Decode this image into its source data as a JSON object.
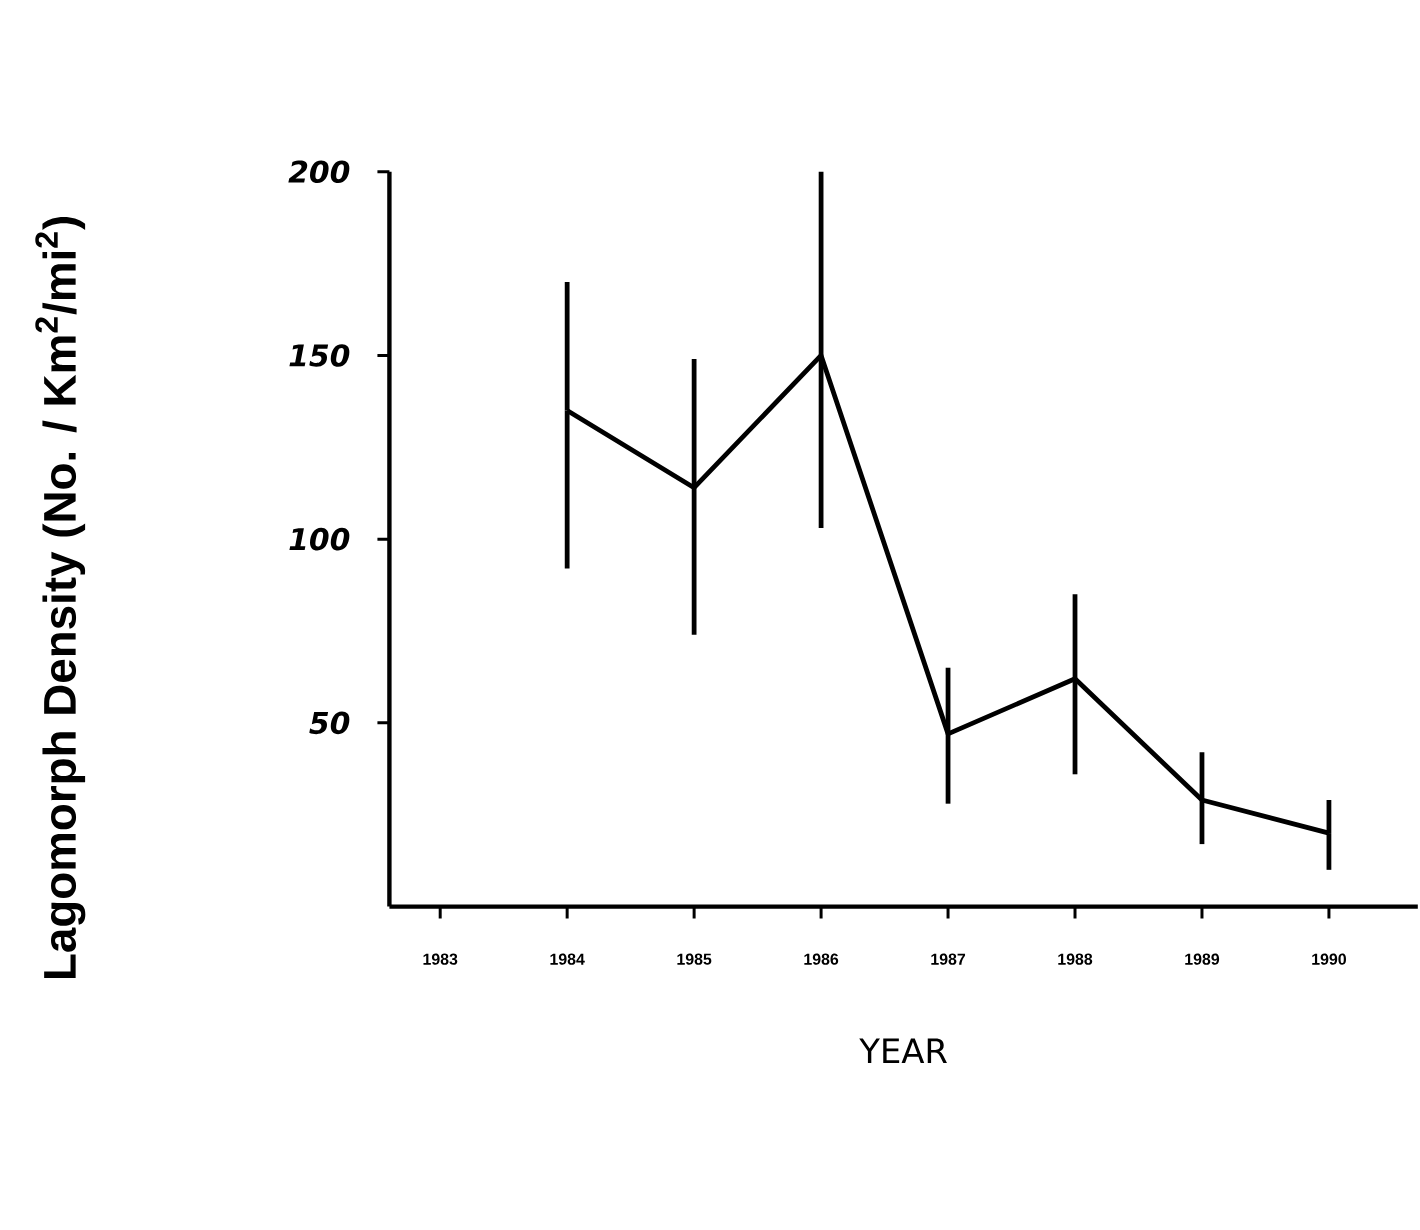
{
  "chart_data": {
    "type": "line",
    "xlabel": "YEAR",
    "ylabel": "Lagomorph Density (No. / Km$^{2}$/mi$^{2}$)",
    "categories": [
      "1983",
      "1984",
      "1985",
      "1986",
      "1987",
      "1988",
      "1989",
      "1990"
    ],
    "values": [
      null,
      135,
      114,
      150,
      47,
      62,
      29,
      20
    ],
    "errors": [
      null,
      [
        92,
        170
      ],
      [
        74,
        149
      ],
      [
        103,
        200
      ],
      [
        28,
        65
      ],
      [
        36,
        85
      ],
      [
        17,
        42
      ],
      [
        10,
        29
      ]
    ],
    "color": "#000000",
    "ylim": [
      0,
      200
    ],
    "yticks": [
      50,
      100,
      150,
      200
    ],
    "marker": "none",
    "line_style": "solid",
    "grid": false
  }
}
